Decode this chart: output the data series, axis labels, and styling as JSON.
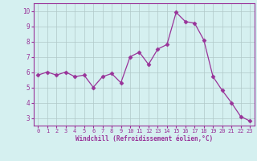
{
  "x": [
    0,
    1,
    2,
    3,
    4,
    5,
    6,
    7,
    8,
    9,
    10,
    11,
    12,
    13,
    14,
    15,
    16,
    17,
    18,
    19,
    20,
    21,
    22,
    23
  ],
  "y": [
    5.8,
    6.0,
    5.8,
    6.0,
    5.7,
    5.8,
    5.0,
    5.7,
    5.9,
    5.3,
    7.0,
    7.3,
    6.5,
    7.5,
    7.8,
    9.9,
    9.3,
    9.2,
    8.1,
    5.7,
    4.8,
    4.0,
    3.1,
    2.8
  ],
  "line_color": "#993399",
  "marker": "D",
  "marker_size": 2.5,
  "bg_color": "#d5f0f0",
  "grid_color": "#b0c8c8",
  "xlabel": "Windchill (Refroidissement éolien,°C)",
  "xlabel_color": "#993399",
  "tick_color": "#993399",
  "ylim": [
    2.5,
    10.5
  ],
  "xlim": [
    -0.5,
    23.5
  ],
  "yticks": [
    3,
    4,
    5,
    6,
    7,
    8,
    9,
    10
  ],
  "xticks": [
    0,
    1,
    2,
    3,
    4,
    5,
    6,
    7,
    8,
    9,
    10,
    11,
    12,
    13,
    14,
    15,
    16,
    17,
    18,
    19,
    20,
    21,
    22,
    23
  ]
}
